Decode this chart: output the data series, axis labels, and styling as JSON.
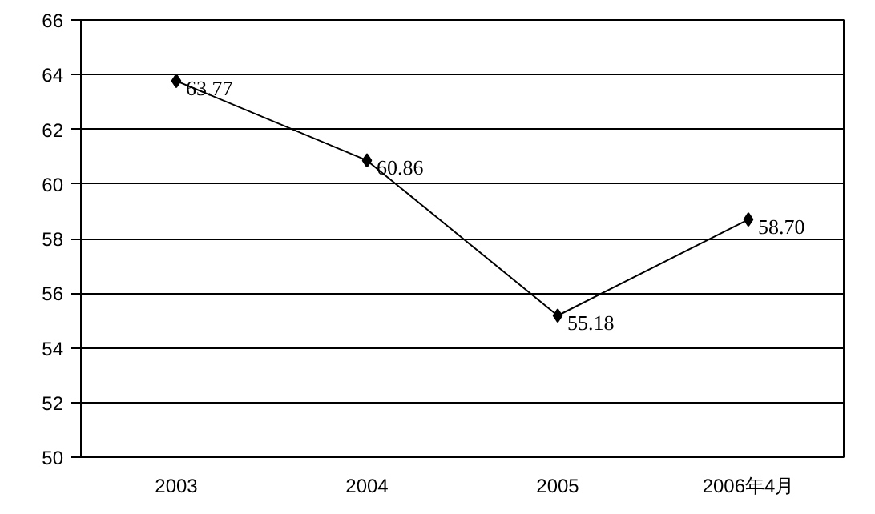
{
  "chart_data": {
    "type": "line",
    "categories": [
      "2003",
      "2004",
      "2005",
      "2006年4月"
    ],
    "series": [
      {
        "color": "#000000",
        "values": [
          63.77,
          60.86,
          55.18,
          58.7
        ],
        "value_labels": [
          "63.77",
          "60.86",
          "55.18",
          "58.70"
        ]
      }
    ],
    "ylim": [
      50,
      66
    ],
    "yticks": [
      50,
      52,
      54,
      56,
      58,
      60,
      62,
      64,
      66
    ],
    "grid": "y",
    "marker": "diamond",
    "line_style": "solid"
  }
}
